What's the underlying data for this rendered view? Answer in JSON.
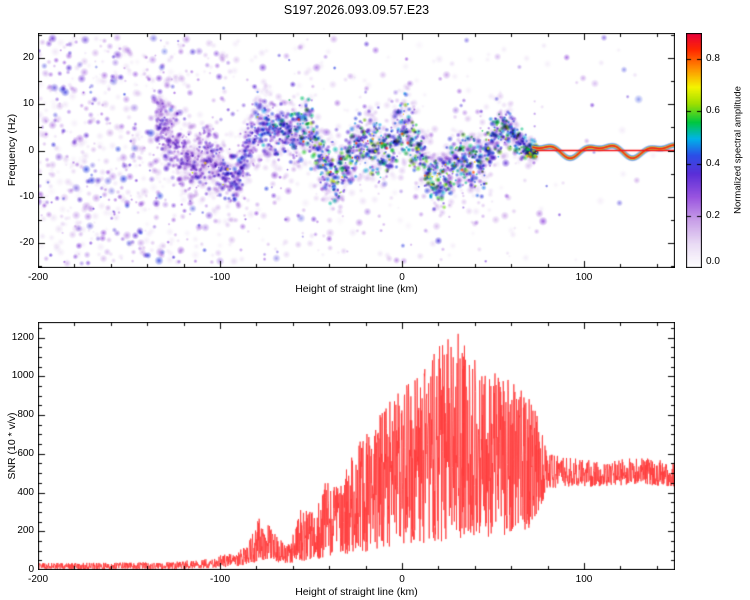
{
  "title": "S197.2026.093.09.57.E23",
  "chart_data": [
    {
      "type": "heatmap",
      "xlabel": "Height of straight line (km)",
      "ylabel": "Frequency (Hz)",
      "xlim": [
        -200,
        150
      ],
      "ylim": [
        -25.5,
        25.5
      ],
      "xticks": [
        -200,
        -100,
        0,
        100
      ],
      "xminor": 20,
      "yticks": [
        -20,
        -10,
        0,
        10,
        20
      ],
      "yminor": 5,
      "grid": false,
      "colorbar": {
        "label": "Normalized spectral amplitude",
        "range": [
          0,
          0.9
        ],
        "ticks": [
          0,
          0.2,
          0.4,
          0.6,
          0.8
        ],
        "tick_labels": [
          "0.0",
          "0.2",
          "0.4",
          "0.6",
          "0.8"
        ]
      },
      "colormap": [
        {
          "t": 0.0,
          "c": "#ffffff"
        },
        {
          "t": 0.1,
          "c": "#eadcf5"
        },
        {
          "t": 0.2,
          "c": "#c9a0e8"
        },
        {
          "t": 0.3,
          "c": "#9a55e0"
        },
        {
          "t": 0.4,
          "c": "#5b2fd8"
        },
        {
          "t": 0.48,
          "c": "#2b50e8"
        },
        {
          "t": 0.55,
          "c": "#00b4e8"
        },
        {
          "t": 0.62,
          "c": "#00c840"
        },
        {
          "t": 0.7,
          "c": "#a0e000"
        },
        {
          "t": 0.77,
          "c": "#f5f500"
        },
        {
          "t": 0.85,
          "c": "#ff9000"
        },
        {
          "t": 0.93,
          "c": "#ff2800"
        },
        {
          "t": 1.0,
          "c": "#e8003c"
        }
      ],
      "content": {
        "seed": 197,
        "description": "Broadband weak noise at all frequencies for heights below about -130 km; a meandering echo band within +/-10 Hz between about -130 and 72 km with scattered high-amplitude (cyan/green/yellow) hotspots; collapses into a narrow high-amplitude red/yellow trace near 0 Hz from about 72 to 150 km.",
        "noise_density": {
          "x": [
            -200,
            -130,
            -115,
            -95,
            -60,
            -20,
            30,
            60,
            72,
            80,
            150
          ],
          "d": [
            8,
            8,
            5,
            3.5,
            2.6,
            2.2,
            1.8,
            1.4,
            0.8,
            0.3,
            0.25
          ]
        },
        "band": {
          "x_start": -135,
          "x_end": 74,
          "converge_start": 45,
          "width_main": 6.5,
          "width_end": 1.3
        },
        "trace": {
          "x_start": 72,
          "x_end": 150,
          "center_freq": 0,
          "wander": 1.8,
          "amplitude": 0.95
        }
      }
    },
    {
      "type": "line",
      "xlabel": "Height of straight line (km)",
      "ylabel": "SNR (10 * v/v)",
      "xlim": [
        -200,
        150
      ],
      "ylim": [
        0,
        1280
      ],
      "xticks": [
        -200,
        -100,
        0,
        100
      ],
      "xminor": 20,
      "yticks": [
        0,
        200,
        400,
        600,
        800,
        1000,
        1200
      ],
      "yminor": 50,
      "series": [
        {
          "name": "SNR",
          "color": "#ff3b3b",
          "envelope": {
            "x": [
              -200,
              -130,
              -110,
              -95,
              -85,
              -78,
              -73,
              -68,
              -62,
              -55,
              -48,
              -42,
              -35,
              -28,
              -20,
              -12,
              -5,
              2,
              10,
              20,
              30,
              40,
              48,
              55,
              62,
              70,
              76,
              80,
              90,
              110,
              130,
              150
            ],
            "low": [
              5,
              5,
              8,
              15,
              25,
              45,
              60,
              40,
              35,
              45,
              55,
              65,
              75,
              85,
              95,
              110,
              120,
              140,
              130,
              140,
              160,
              180,
              170,
              180,
              170,
              220,
              320,
              420,
              430,
              430,
              440,
              430
            ],
            "high": [
              35,
              40,
              55,
              85,
              120,
              280,
              230,
              160,
              130,
              330,
              300,
              480,
              420,
              600,
              700,
              800,
              900,
              950,
              1000,
              1150,
              1230,
              1100,
              1000,
              1060,
              950,
              900,
              750,
              600,
              580,
              560,
              580,
              560
            ]
          }
        }
      ]
    }
  ]
}
